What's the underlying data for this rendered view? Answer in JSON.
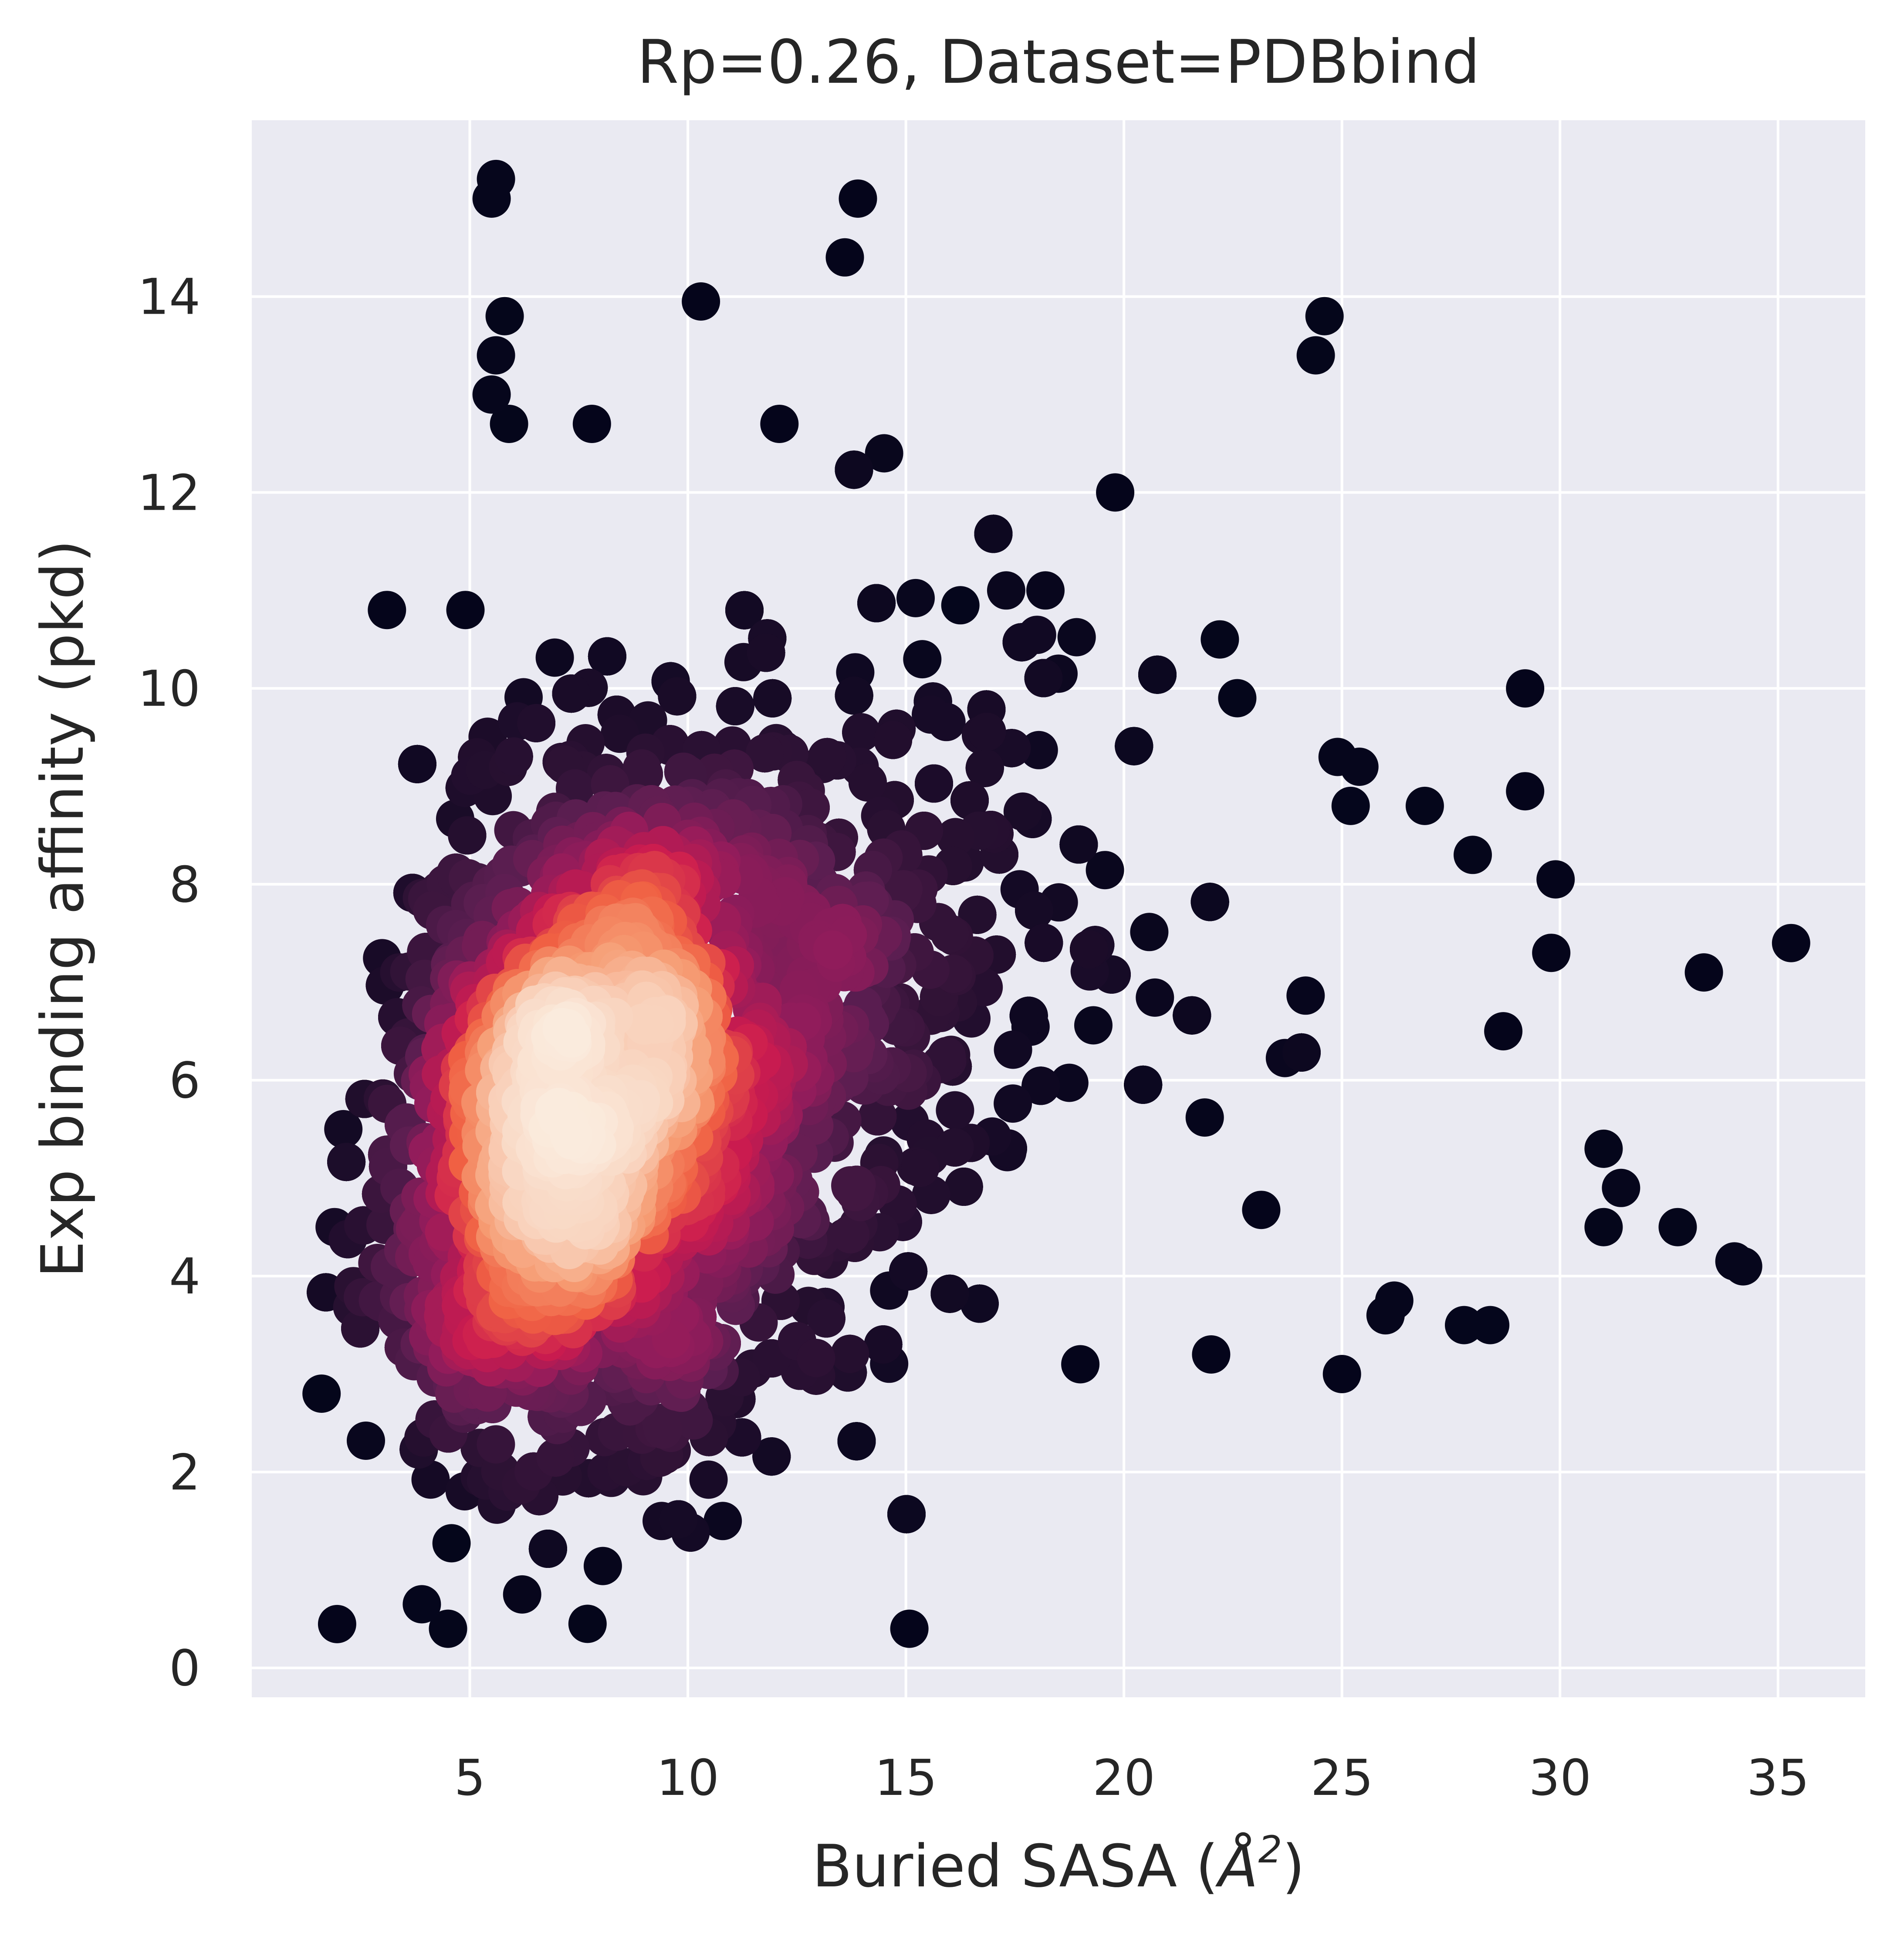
{
  "chart_data": {
    "type": "scatter",
    "title": "Rp=0.26, Dataset=PDBbind",
    "xlabel_main": "Buried SASA (",
    "xlabel_symbol": "Å",
    "xlabel_exponent": "2",
    "xlabel_close": ")",
    "ylabel": "Exp binding affinity (pkd)",
    "xlim": [
      0,
      37
    ],
    "ylim": [
      -0.3,
      15.8
    ],
    "xticks": [
      5,
      10,
      15,
      20,
      25,
      30,
      35
    ],
    "yticks": [
      0,
      2,
      4,
      6,
      8,
      10,
      12,
      14
    ],
    "xtick_labels": [
      "5",
      "10",
      "15",
      "20",
      "25",
      "30",
      "35"
    ],
    "ytick_labels": [
      "0",
      "2",
      "4",
      "6",
      "8",
      "10",
      "12",
      "14"
    ],
    "grid": true,
    "background_color": "#eaeaf2",
    "colormap": "rocket",
    "color_encoding": "point density",
    "colormap_stops": [
      "#03051a",
      "#2b1133",
      "#5b1e51",
      "#921c5b",
      "#cb1b4f",
      "#f06043",
      "#f69c73",
      "#f9d2bc",
      "#faebdd"
    ],
    "point_count_estimate": 12000,
    "outliers": [
      {
        "x": 5.6,
        "y": 15.2
      },
      {
        "x": 5.5,
        "y": 15.0
      },
      {
        "x": 13.9,
        "y": 15.0
      },
      {
        "x": 13.6,
        "y": 14.4
      },
      {
        "x": 10.3,
        "y": 13.95
      },
      {
        "x": 24.6,
        "y": 13.8
      },
      {
        "x": 24.4,
        "y": 13.4
      },
      {
        "x": 5.8,
        "y": 13.8
      },
      {
        "x": 5.6,
        "y": 13.4
      },
      {
        "x": 5.5,
        "y": 13.0
      },
      {
        "x": 5.9,
        "y": 12.7
      },
      {
        "x": 19.8,
        "y": 12.0
      },
      {
        "x": 14.5,
        "y": 12.4
      },
      {
        "x": 12.1,
        "y": 12.7
      },
      {
        "x": 7.8,
        "y": 12.7
      },
      {
        "x": 22.2,
        "y": 10.5
      },
      {
        "x": 22.6,
        "y": 9.9
      },
      {
        "x": 29.2,
        "y": 10.0
      },
      {
        "x": 29.2,
        "y": 8.95
      },
      {
        "x": 29.9,
        "y": 8.05
      },
      {
        "x": 35.3,
        "y": 7.4
      },
      {
        "x": 33.3,
        "y": 7.1
      },
      {
        "x": 29.8,
        "y": 7.3
      },
      {
        "x": 31.0,
        "y": 5.3
      },
      {
        "x": 31.4,
        "y": 4.9
      },
      {
        "x": 31.0,
        "y": 4.5
      },
      {
        "x": 32.7,
        "y": 4.5
      },
      {
        "x": 34.0,
        "y": 4.15
      },
      {
        "x": 34.2,
        "y": 4.1
      },
      {
        "x": 25.0,
        "y": 3.0
      },
      {
        "x": 22.0,
        "y": 3.2
      },
      {
        "x": 19.0,
        "y": 3.1
      },
      {
        "x": 28.4,
        "y": 3.5
      },
      {
        "x": 27.8,
        "y": 3.5
      },
      {
        "x": 26.0,
        "y": 3.6
      },
      {
        "x": 26.2,
        "y": 3.75
      },
      {
        "x": 7.7,
        "y": 0.45
      },
      {
        "x": 4.5,
        "y": 0.4
      },
      {
        "x": 1.6,
        "y": 2.8
      },
      {
        "x": 1.9,
        "y": 4.5
      },
      {
        "x": 2.1,
        "y": 5.5
      },
      {
        "x": 3.1,
        "y": 10.8
      },
      {
        "x": 4.9,
        "y": 10.8
      },
      {
        "x": 17.3,
        "y": 11.0
      },
      {
        "x": 18.2,
        "y": 11.0
      },
      {
        "x": 18.5,
        "y": 10.15
      },
      {
        "x": 25.4,
        "y": 9.2
      },
      {
        "x": 24.9,
        "y": 9.3
      },
      {
        "x": 25.2,
        "y": 8.8
      },
      {
        "x": 26.9,
        "y": 8.8
      },
      {
        "x": 28.0,
        "y": 8.3
      },
      {
        "x": 28.7,
        "y": 6.5
      },
      {
        "x": 10.8,
        "y": 1.5
      },
      {
        "x": 9.4,
        "y": 1.5
      },
      {
        "x": 6.2,
        "y": 0.75
      },
      {
        "x": 3.9,
        "y": 0.65
      }
    ]
  }
}
